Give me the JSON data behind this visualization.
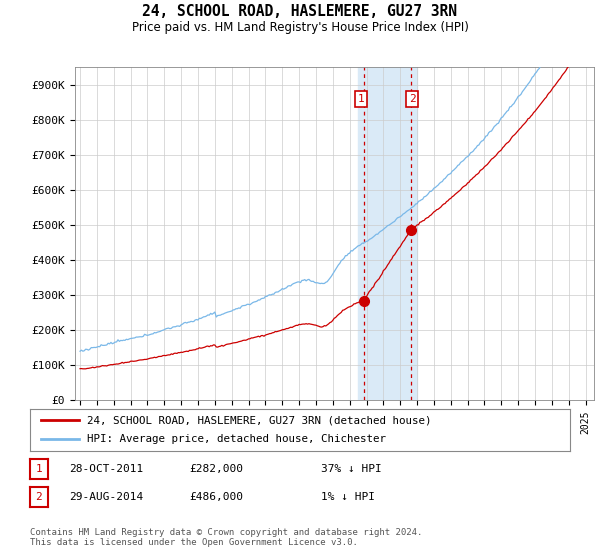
{
  "title": "24, SCHOOL ROAD, HASLEMERE, GU27 3RN",
  "subtitle": "Price paid vs. HM Land Registry's House Price Index (HPI)",
  "ylabel_ticks": [
    "£0",
    "£100K",
    "£200K",
    "£300K",
    "£400K",
    "£500K",
    "£600K",
    "£700K",
    "£800K",
    "£900K"
  ],
  "ytick_values": [
    0,
    100000,
    200000,
    300000,
    400000,
    500000,
    600000,
    700000,
    800000,
    900000
  ],
  "ylim": [
    0,
    950000
  ],
  "xlim_start": 1994.7,
  "xlim_end": 2025.5,
  "hpi_color": "#7ab8e8",
  "price_color": "#cc0000",
  "transaction1_date": 2011.83,
  "transaction1_price": 282000,
  "transaction2_date": 2014.66,
  "transaction2_price": 486000,
  "highlight_color": "#daeaf7",
  "highlight_x1": 2011.5,
  "highlight_x2": 2015.0,
  "legend_label1": "24, SCHOOL ROAD, HASLEMERE, GU27 3RN (detached house)",
  "legend_label2": "HPI: Average price, detached house, Chichester",
  "transaction1_info": "28-OCT-2011",
  "transaction1_amount": "£282,000",
  "transaction1_hpi": "37% ↓ HPI",
  "transaction2_info": "29-AUG-2014",
  "transaction2_amount": "£486,000",
  "transaction2_hpi": "1% ↓ HPI",
  "footnote": "Contains HM Land Registry data © Crown copyright and database right 2024.\nThis data is licensed under the Open Government Licence v3.0."
}
